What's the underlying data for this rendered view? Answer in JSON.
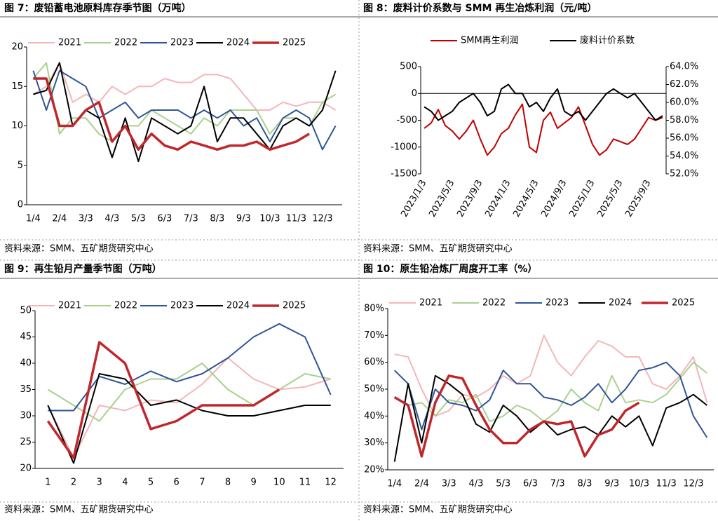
{
  "chart_data": [
    {
      "type": "line",
      "title": "图 7：废铅蓄电池原料库存季节图（万吨）",
      "source": "资料来源：SMM、五矿期货研究中心",
      "categories": [
        "1/4",
        null,
        "2/4",
        null,
        "3/3",
        null,
        "4/3",
        null,
        "5/3",
        null,
        "6/3",
        null,
        "7/3",
        null,
        "8/3",
        null,
        "9/3",
        null,
        "10/3",
        null,
        "11/3",
        null,
        "12/3",
        null
      ],
      "ylim": [
        0,
        20
      ],
      "yticks": [
        0,
        5,
        10,
        15,
        20
      ],
      "series": [
        {
          "name": "2021",
          "color": "#f4b6ba",
          "values": [
            14,
            15,
            18,
            13,
            14,
            13,
            15,
            14,
            15,
            15,
            16,
            15.5,
            15.5,
            16.5,
            16.5,
            16,
            14,
            12,
            12,
            13,
            12.5,
            13,
            13,
            12
          ]
        },
        {
          "name": "2022",
          "color": "#a9d18e",
          "values": [
            16,
            18,
            9,
            11,
            11,
            9,
            8,
            10,
            10,
            12,
            11,
            10,
            9,
            11,
            10,
            12,
            12,
            12,
            9,
            11,
            11,
            10,
            13,
            14
          ]
        },
        {
          "name": "2023",
          "color": "#2f5597",
          "values": [
            17,
            12,
            17,
            16,
            15,
            11,
            12,
            13,
            11,
            12,
            12,
            12,
            11,
            12,
            11,
            12,
            10,
            11,
            8,
            11,
            12,
            11,
            7,
            10
          ]
        },
        {
          "name": "2024",
          "color": "#000000",
          "values": [
            14,
            14.5,
            18,
            10,
            12,
            11,
            6,
            11,
            5.5,
            11,
            10,
            9,
            10,
            15,
            8,
            11,
            11,
            9,
            7,
            10,
            11,
            10,
            12,
            17
          ]
        },
        {
          "name": "2025",
          "color": "#c0272d",
          "values": [
            16,
            16,
            10,
            10,
            12,
            13,
            8,
            10,
            7,
            9,
            7.5,
            7,
            8,
            7.5,
            7,
            7.5,
            7.5,
            8,
            7,
            7.5,
            8,
            9,
            null,
            null
          ]
        }
      ]
    },
    {
      "type": "dual-line",
      "title": "图 8：废料计价系数与 SMM 再生冶炼利润（元/吨）",
      "source": "资料来源：SMM、五矿期货研究中心",
      "categories": [
        "2023/1/3",
        null,
        null,
        null,
        "2023/5/3",
        null,
        null,
        null,
        "2023/9/3",
        null,
        null,
        null,
        "2024/1/3",
        null,
        null,
        null,
        "2024/5/3",
        null,
        null,
        null,
        "2024/9/3",
        null,
        null,
        null,
        "2025/1/3",
        null,
        null,
        null,
        "2025/5/3",
        null,
        null,
        null,
        "2025/9/3",
        null,
        null
      ],
      "ylim": [
        -1500,
        500
      ],
      "yticks": [
        500,
        0,
        -500,
        -1000,
        -1500
      ],
      "y2lim": [
        52,
        64
      ],
      "y2ticks": [
        {
          "value": 64,
          "label": "64.0%"
        },
        {
          "value": 62,
          "label": "62.0%"
        },
        {
          "value": 60,
          "label": "60.0%"
        },
        {
          "value": 58,
          "label": "58.0%"
        },
        {
          "value": 56,
          "label": "56.0%"
        },
        {
          "value": 54,
          "label": "54.0%"
        },
        {
          "value": 52,
          "label": "52.0%"
        }
      ],
      "series": [
        {
          "name": "SMM再生利润",
          "color": "#c00000",
          "values": [
            -650,
            -550,
            -300,
            -600,
            -700,
            -850,
            -700,
            -500,
            -850,
            -1150,
            -1000,
            -750,
            -650,
            -400,
            -200,
            -1000,
            -1100,
            -500,
            -350,
            -650,
            -550,
            -450,
            -250,
            -600,
            -950,
            -1150,
            -1050,
            -850,
            -900,
            -950,
            -850,
            -650,
            -450,
            -500,
            -450
          ]
        },
        {
          "name": "废料计价系数",
          "color": "#000000",
          "axis": "y2",
          "values": [
            59.5,
            59,
            58,
            58.5,
            59,
            60,
            60.5,
            61,
            60,
            58.5,
            59,
            61.5,
            62,
            61,
            61,
            59.5,
            60,
            59,
            60.5,
            61.5,
            59,
            58.5,
            59,
            58,
            59,
            60,
            61,
            61.5,
            61,
            60.5,
            61,
            60,
            59,
            58,
            58.5
          ]
        }
      ]
    },
    {
      "type": "line",
      "title": "图 9：再生铅月产量季节图（万吨）",
      "source": "资料来源：SMM、五矿期货研究中心",
      "categories": [
        "1",
        "2",
        "3",
        "4",
        "5",
        "6",
        "7",
        "8",
        "9",
        "10",
        "11",
        "12"
      ],
      "ylim": [
        20,
        50
      ],
      "yticks": [
        20,
        25,
        30,
        35,
        40,
        45,
        50
      ],
      "series": [
        {
          "name": "2021",
          "color": "#f4b6ba",
          "values": [
            32,
            22,
            32,
            31,
            33,
            32.5,
            36,
            41,
            37,
            35,
            35.5,
            37
          ]
        },
        {
          "name": "2022",
          "color": "#a9d18e",
          "values": [
            35,
            32,
            29,
            35,
            37,
            37,
            40,
            35,
            32,
            35,
            38,
            37
          ]
        },
        {
          "name": "2023",
          "color": "#2f5597",
          "values": [
            31,
            31,
            37.5,
            36,
            38.5,
            36.5,
            38,
            41,
            45,
            47.5,
            45,
            34
          ]
        },
        {
          "name": "2024",
          "color": "#000000",
          "values": [
            32,
            21,
            38,
            37,
            32,
            33,
            31,
            30,
            30,
            31,
            32,
            32
          ]
        },
        {
          "name": "2025",
          "color": "#c0272d",
          "values": [
            29,
            22,
            44,
            40,
            27.5,
            29,
            32,
            32,
            32,
            35,
            null,
            null
          ]
        }
      ]
    },
    {
      "type": "line",
      "title": "图 10：原生铅冶炼厂周度开工率（%）",
      "source": "资料来源：SMM、五矿期货研究中心",
      "categories": [
        "1/4",
        null,
        "2/4",
        null,
        "3/3",
        null,
        "4/3",
        null,
        "5/3",
        null,
        "6/3",
        null,
        "7/3",
        null,
        "8/3",
        null,
        "9/3",
        null,
        "10/3",
        null,
        "11/3",
        null,
        "12/3",
        null
      ],
      "ylim": [
        20,
        80
      ],
      "yticks": [
        {
          "value": 20,
          "label": "20%"
        },
        {
          "value": 30,
          "label": "30%"
        },
        {
          "value": 40,
          "label": "40%"
        },
        {
          "value": 50,
          "label": "50%"
        },
        {
          "value": 60,
          "label": "60%"
        },
        {
          "value": 70,
          "label": "70%"
        },
        {
          "value": 80,
          "label": "80%"
        }
      ],
      "series": [
        {
          "name": "2021",
          "color": "#f4b6ba",
          "values": [
            63,
            62,
            50,
            40,
            42,
            48,
            47,
            50,
            55,
            52,
            55,
            70,
            60,
            55,
            62,
            68,
            66,
            62,
            62,
            52,
            50,
            55,
            62,
            45
          ]
        },
        {
          "name": "2022",
          "color": "#a9d18e",
          "values": [
            47,
            44,
            45,
            40,
            46,
            45,
            48,
            38,
            40,
            44,
            42,
            38,
            42,
            50,
            45,
            42,
            55,
            45,
            46,
            45,
            48,
            54,
            60,
            56
          ]
        },
        {
          "name": "2023",
          "color": "#2f5597",
          "values": [
            57,
            52,
            35,
            50,
            45,
            44,
            42,
            46,
            57,
            52,
            52,
            47,
            46,
            44,
            47,
            52,
            45,
            50,
            57,
            58,
            60,
            55,
            40,
            32
          ]
        },
        {
          "name": "2024",
          "color": "#000000",
          "values": [
            23,
            52,
            30,
            55,
            52,
            48,
            37,
            34,
            44,
            40,
            34,
            38,
            33,
            35,
            36,
            33,
            40,
            36,
            40,
            29,
            43,
            45,
            48,
            44
          ]
        },
        {
          "name": "2025",
          "color": "#c0272d",
          "values": [
            47,
            44,
            25,
            45,
            55,
            54,
            44,
            35,
            30,
            30,
            35,
            38,
            37,
            38,
            25,
            33,
            35,
            42,
            45,
            null,
            null,
            null,
            null,
            null
          ]
        }
      ]
    }
  ]
}
